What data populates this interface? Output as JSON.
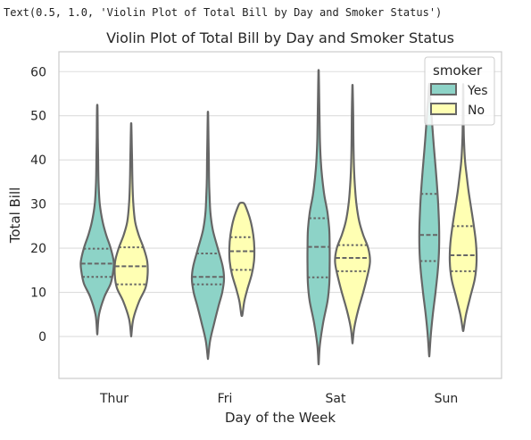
{
  "console_text": "Text(0.5, 1.0, 'Violin Plot of Total Bill by Day and Smoker Status')",
  "chart_data": {
    "type": "violin",
    "title": "Violin Plot of Total Bill by Day and Smoker Status",
    "xlabel": "Day of the Week",
    "ylabel": "Total Bill",
    "categories": [
      "Thur",
      "Fri",
      "Sat",
      "Sun"
    ],
    "ylim": [
      -9.5,
      64.5
    ],
    "yticks": [
      0,
      10,
      20,
      30,
      40,
      50,
      60
    ],
    "grid": true,
    "legend": {
      "title": "smoker",
      "position": "top-right",
      "entries": [
        {
          "label": "Yes",
          "color": "#8dd3c7"
        },
        {
          "label": "No",
          "color": "#ffffb3"
        }
      ]
    },
    "colors": {
      "Yes": "#8dd3c7",
      "No": "#ffffb3",
      "outline": "#666666"
    },
    "series": [
      {
        "name": "Yes",
        "violins": [
          {
            "day": "Thur",
            "min": 0.8,
            "max": 52.3,
            "q1": 13.5,
            "median": 16.5,
            "q3": 19.9,
            "profile": [
              [
                0.8,
                0.01
              ],
              [
                5,
                0.1
              ],
              [
                9,
                0.4
              ],
              [
                12,
                0.75
              ],
              [
                15,
                0.9
              ],
              [
                17,
                0.92
              ],
              [
                20,
                0.75
              ],
              [
                23,
                0.5
              ],
              [
                26,
                0.3
              ],
              [
                30,
                0.14
              ],
              [
                35,
                0.07
              ],
              [
                40,
                0.05
              ],
              [
                45,
                0.03
              ],
              [
                50,
                0.02
              ],
              [
                52.3,
                0.01
              ]
            ]
          },
          {
            "day": "Fri",
            "min": -4.8,
            "max": 50.5,
            "q1": 11.8,
            "median": 13.5,
            "q3": 18.8,
            "profile": [
              [
                -4.8,
                0.01
              ],
              [
                -1,
                0.12
              ],
              [
                3,
                0.35
              ],
              [
                7,
                0.6
              ],
              [
                10,
                0.8
              ],
              [
                13,
                0.9
              ],
              [
                16,
                0.82
              ],
              [
                20,
                0.55
              ],
              [
                24,
                0.28
              ],
              [
                28,
                0.14
              ],
              [
                32,
                0.09
              ],
              [
                36,
                0.06
              ],
              [
                40,
                0.05
              ],
              [
                45,
                0.03
              ],
              [
                50.5,
                0.01
              ]
            ]
          },
          {
            "day": "Sat",
            "min": -6.0,
            "max": 60.0,
            "q1": 13.4,
            "median": 20.3,
            "q3": 26.8,
            "profile": [
              [
                -6,
                0.01
              ],
              [
                -2,
                0.07
              ],
              [
                3,
                0.25
              ],
              [
                8,
                0.5
              ],
              [
                12,
                0.6
              ],
              [
                16,
                0.62
              ],
              [
                20,
                0.62
              ],
              [
                24,
                0.6
              ],
              [
                28,
                0.5
              ],
              [
                32,
                0.32
              ],
              [
                36,
                0.2
              ],
              [
                40,
                0.12
              ],
              [
                45,
                0.07
              ],
              [
                50,
                0.05
              ],
              [
                55,
                0.03
              ],
              [
                60,
                0.01
              ]
            ]
          },
          {
            "day": "Sun",
            "min": -4.2,
            "max": 57.0,
            "q1": 17.1,
            "median": 23.0,
            "q3": 32.3,
            "profile": [
              [
                -4.2,
                0.01
              ],
              [
                0,
                0.08
              ],
              [
                5,
                0.2
              ],
              [
                10,
                0.35
              ],
              [
                15,
                0.48
              ],
              [
                20,
                0.55
              ],
              [
                25,
                0.55
              ],
              [
                30,
                0.5
              ],
              [
                35,
                0.42
              ],
              [
                40,
                0.32
              ],
              [
                45,
                0.22
              ],
              [
                50,
                0.13
              ],
              [
                54,
                0.06
              ],
              [
                57,
                0.01
              ]
            ]
          }
        ]
      },
      {
        "name": "No",
        "violins": [
          {
            "day": "Thur",
            "min": 0.3,
            "max": 48.0,
            "q1": 11.8,
            "median": 15.9,
            "q3": 20.2,
            "profile": [
              [
                0.3,
                0.01
              ],
              [
                4,
                0.12
              ],
              [
                8,
                0.45
              ],
              [
                11,
                0.8
              ],
              [
                14,
                0.92
              ],
              [
                17,
                0.9
              ],
              [
                20,
                0.7
              ],
              [
                23,
                0.42
              ],
              [
                26,
                0.22
              ],
              [
                30,
                0.12
              ],
              [
                35,
                0.07
              ],
              [
                40,
                0.05
              ],
              [
                44,
                0.03
              ],
              [
                48,
                0.01
              ]
            ]
          },
          {
            "day": "Fri",
            "min": 4.9,
            "max": 30.3,
            "q1": 15.1,
            "median": 19.3,
            "q3": 22.5,
            "profile": [
              [
                4.9,
                0.03
              ],
              [
                8,
                0.14
              ],
              [
                11,
                0.33
              ],
              [
                14,
                0.55
              ],
              [
                17,
                0.68
              ],
              [
                20,
                0.7
              ],
              [
                23,
                0.64
              ],
              [
                26,
                0.5
              ],
              [
                28,
                0.35
              ],
              [
                30,
                0.15
              ],
              [
                30.3,
                0.03
              ]
            ]
          },
          {
            "day": "Sat",
            "min": -1.3,
            "max": 56.5,
            "q1": 14.8,
            "median": 17.8,
            "q3": 20.7,
            "profile": [
              [
                -1.3,
                0.01
              ],
              [
                2,
                0.1
              ],
              [
                6,
                0.32
              ],
              [
                10,
                0.6
              ],
              [
                14,
                0.85
              ],
              [
                17,
                0.98
              ],
              [
                20,
                0.88
              ],
              [
                23,
                0.6
              ],
              [
                26,
                0.38
              ],
              [
                30,
                0.22
              ],
              [
                35,
                0.12
              ],
              [
                40,
                0.07
              ],
              [
                45,
                0.05
              ],
              [
                50,
                0.04
              ],
              [
                56.5,
                0.01
              ]
            ]
          },
          {
            "day": "Sun",
            "min": 1.5,
            "max": 57.0,
            "q1": 14.8,
            "median": 18.4,
            "q3": 25.0,
            "profile": [
              [
                1.5,
                0.02
              ],
              [
                5,
                0.16
              ],
              [
                9,
                0.4
              ],
              [
                13,
                0.65
              ],
              [
                17,
                0.75
              ],
              [
                21,
                0.72
              ],
              [
                25,
                0.6
              ],
              [
                29,
                0.45
              ],
              [
                33,
                0.3
              ],
              [
                37,
                0.18
              ],
              [
                40,
                0.1
              ],
              [
                45,
                0.04
              ],
              [
                50,
                0.02
              ],
              [
                55,
                0.01
              ],
              [
                57,
                0.005
              ]
            ]
          }
        ]
      }
    ]
  }
}
